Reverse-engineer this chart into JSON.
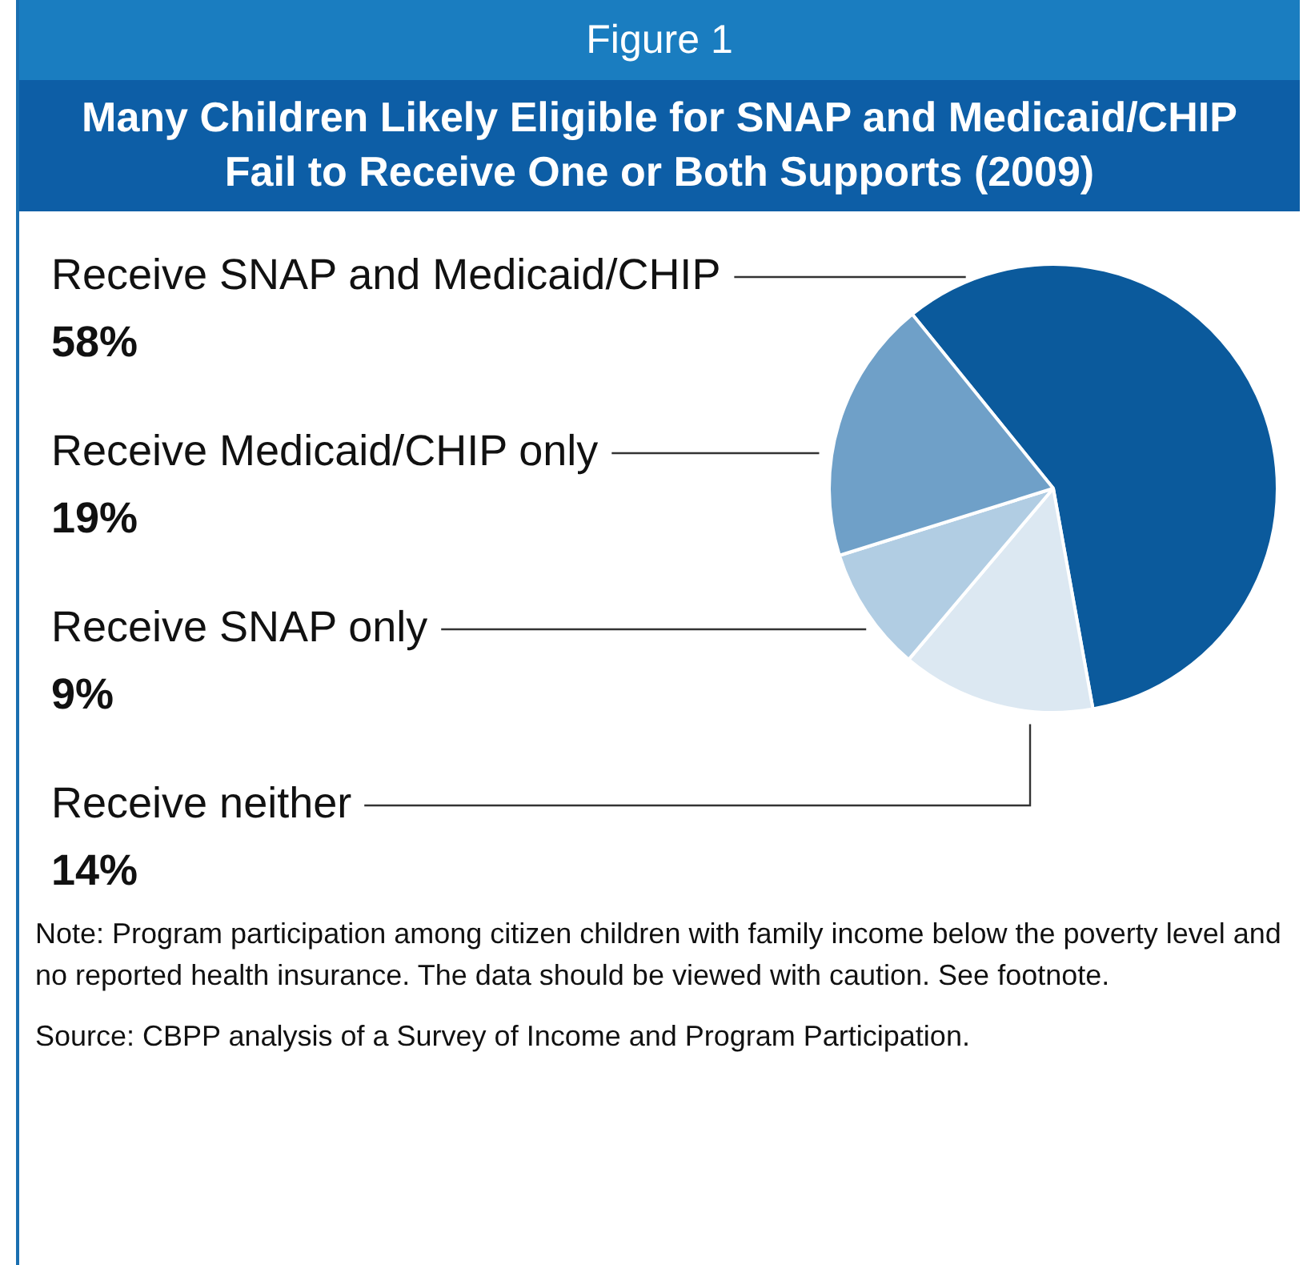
{
  "chart_data": {
    "type": "pie",
    "subtitle": "Figure 1",
    "title": "Many Children Likely Eligible for SNAP and Medicaid/CHIP Fail to Receive One or Both Supports (2009)",
    "categories": [
      "Receive SNAP and Medicaid/CHIP",
      "Receive neither",
      "Receive SNAP only",
      "Receive Medicaid/CHIP only"
    ],
    "values": [
      58,
      14,
      9,
      19
    ],
    "value_labels": [
      "58%",
      "14%",
      "9%",
      "19%"
    ],
    "colors": [
      "#0b5a9c",
      "#dce8f2",
      "#b1cde3",
      "#6fa0c8"
    ],
    "annotations": [
      "Note: Program participation among citizen children with family income below the poverty level and no reported health insurance.  The data should be viewed with caution.  See footnote.",
      "Source: CBPP analysis of a Survey of Income and Program Participation."
    ]
  }
}
